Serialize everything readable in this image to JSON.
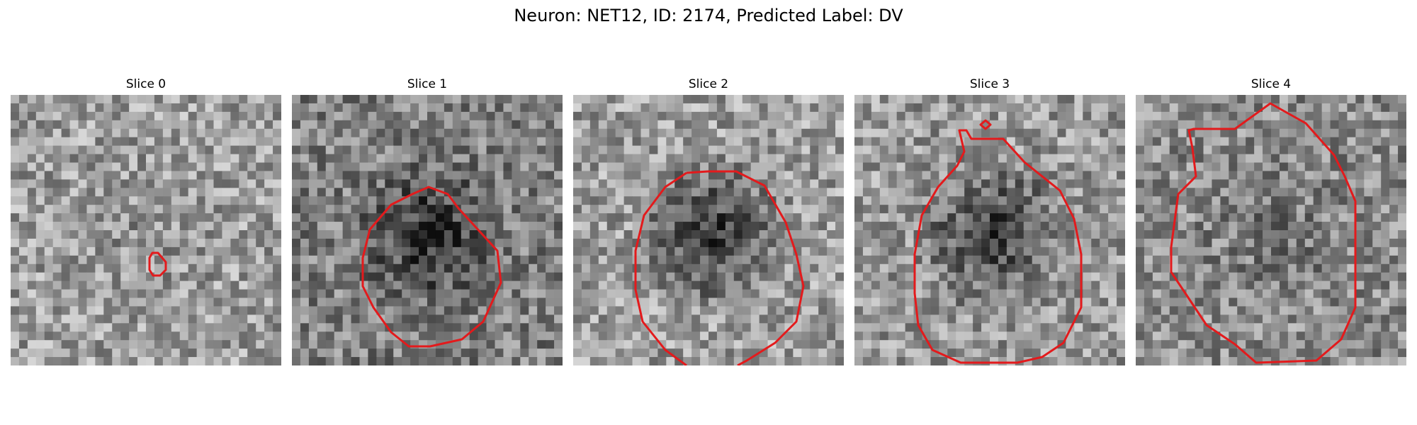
{
  "figure": {
    "title": "Neuron: NET12, ID: 2174, Predicted Label: DV"
  },
  "panels": [
    {
      "title": "Slice 0",
      "tone": 0.62,
      "blob": 0.05,
      "contour_color": "#e31a1c"
    },
    {
      "title": "Slice 1",
      "tone": 0.5,
      "blob": 0.35,
      "contour_color": "#e31a1c"
    },
    {
      "title": "Slice 2",
      "tone": 0.62,
      "blob": 0.45,
      "contour_color": "#e31a1c"
    },
    {
      "title": "Slice 3",
      "tone": 0.6,
      "blob": 0.4,
      "contour_color": "#e31a1c"
    },
    {
      "title": "Slice 4",
      "tone": 0.55,
      "blob": 0.1,
      "contour_color": "#e31a1c"
    }
  ]
}
